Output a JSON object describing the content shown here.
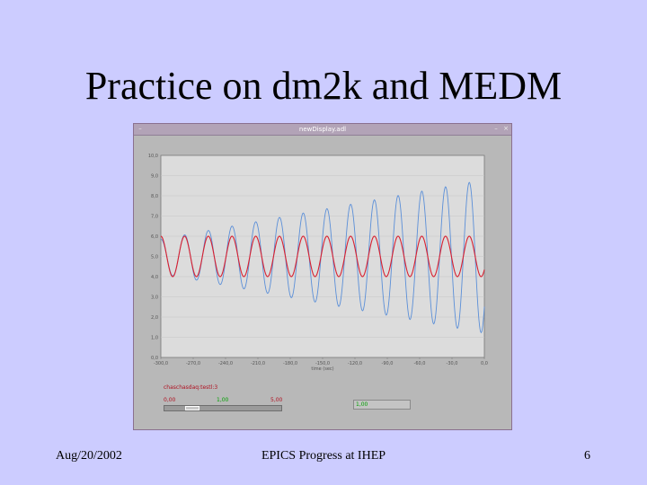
{
  "slide": {
    "title": "Practice on dm2k and MEDM",
    "footer_left": "Aug/20/2002",
    "footer_center": "EPICS Progress at IHEP",
    "footer_right": "6"
  },
  "window": {
    "title": "newDisplay.adl",
    "minimize_glyph": "–",
    "close_glyph": "×"
  },
  "control": {
    "label": "chaschasdaq:testl:3",
    "slider_min": "0,00",
    "slider_value": "1,00",
    "slider_max": "5,00",
    "slider_fraction": 0.2,
    "readout": "1,00"
  },
  "chart_data": {
    "type": "line",
    "xlabel": "time (sec)",
    "ylabel": "",
    "title": "",
    "xlim": [
      -300,
      0
    ],
    "ylim": [
      0,
      10
    ],
    "x_ticks": [
      "-300,0",
      "-270,0",
      "-240,0",
      "-210,0",
      "-180,0",
      "-150,0",
      "-120,0",
      "-90,0",
      "-60,0",
      "-30,0",
      "0,0"
    ],
    "y_ticks": [
      "0,0",
      "1,0",
      "2,0",
      "3,0",
      "4,0",
      "5,0",
      "6,0",
      "7,0",
      "8,0",
      "9,0",
      "10,0"
    ],
    "grid": true,
    "series": [
      {
        "color": "#5b8fd8",
        "center": 5.0,
        "period": 22,
        "amplitude_start": 0.85,
        "amplitude_end": 3.8
      },
      {
        "color": "#d82030",
        "center": 5.0,
        "period": 22,
        "amplitude_start": 1.0,
        "amplitude_end": 1.0
      }
    ]
  }
}
